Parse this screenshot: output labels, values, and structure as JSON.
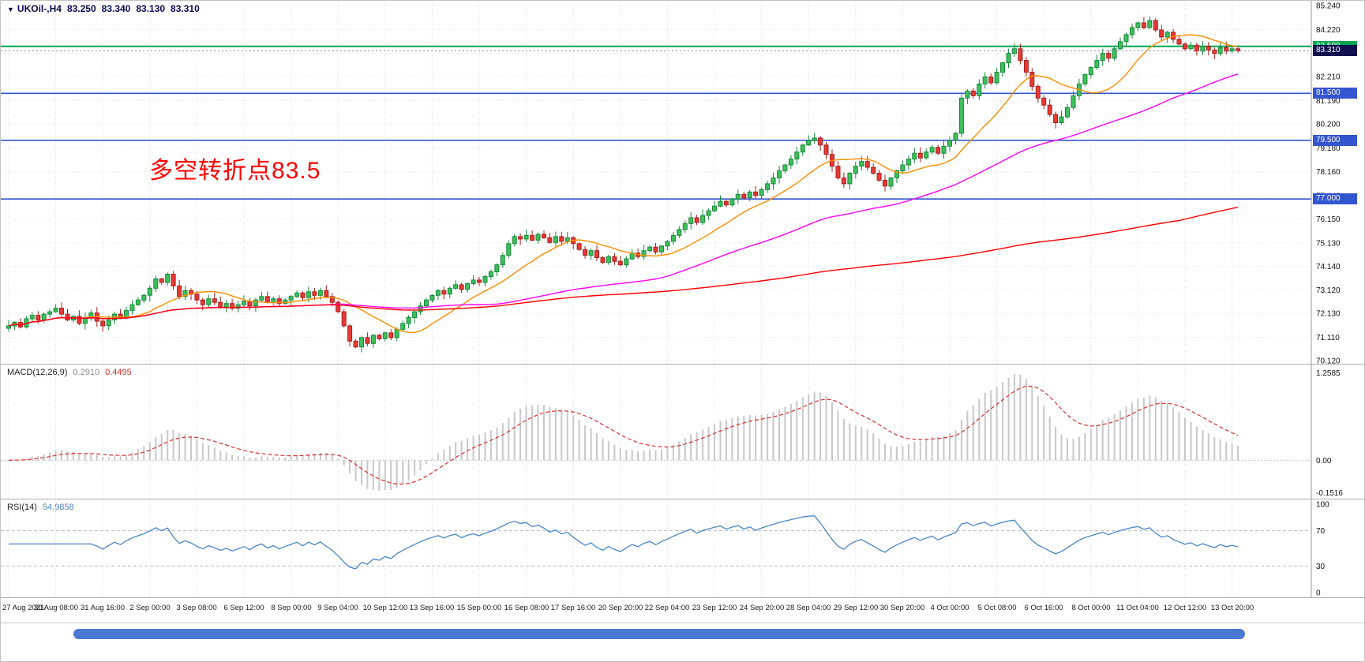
{
  "header": {
    "symbol_marker": "▼",
    "title": "UKOil-,H4",
    "quote": {
      "open": "83.250",
      "high": "83.340",
      "low": "83.130",
      "close": "83.310"
    }
  },
  "annotation": {
    "text": "多空转折点83.5",
    "color": "#FF0000"
  },
  "chart_data": {
    "type": "candlestick",
    "symbol": "UKOil-",
    "timeframe": "H4",
    "price_axis": {
      "max": 85.24,
      "min": 70.12,
      "ticks": [
        85.24,
        84.22,
        83.2,
        82.21,
        81.19,
        80.2,
        79.18,
        78.16,
        77.14,
        76.15,
        75.13,
        74.14,
        73.12,
        72.13,
        71.11,
        70.12
      ]
    },
    "time_axis": [
      "27 Aug 2021",
      "30 Aug 08:00",
      "31 Aug 16:00",
      "2 Sep 00:00",
      "3 Sep 08:00",
      "6 Sep 12:00",
      "8 Sep 00:00",
      "9 Sep 04:00",
      "10 Sep 12:00",
      "13 Sep 16:00",
      "15 Sep 00:00",
      "16 Sep 08:00",
      "17 Sep 16:00",
      "20 Sep 20:00",
      "22 Sep 04:00",
      "23 Sep 12:00",
      "24 Sep 20:00",
      "28 Sep 04:00",
      "29 Sep 12:00",
      "30 Sep 20:00",
      "4 Oct 00:00",
      "5 Oct 08:00",
      "6 Oct 16:00",
      "8 Oct 00:00",
      "11 Oct 04:00",
      "12 Oct 12:00",
      "13 Oct 20:00"
    ],
    "horizontal_lines": [
      {
        "price": 83.5,
        "label": "83.500",
        "color": "#00A651",
        "width": 2
      },
      {
        "price": 81.5,
        "label": "81.500",
        "color": "#3355D0",
        "width": 1.6
      },
      {
        "price": 79.5,
        "label": "79.500",
        "color": "#3355D0",
        "width": 1.6
      },
      {
        "price": 77.0,
        "label": "77.000",
        "color": "#3355D0",
        "width": 1.6
      }
    ],
    "current_price": {
      "price": 83.31,
      "label": "83.310",
      "bg": "#10104F"
    },
    "candles": {
      "first_open": 71.5,
      "up": {
        "fill": "#3FBF5C",
        "border": "#168A3A"
      },
      "down": {
        "fill": "#E63A34",
        "border": "#A81E1E"
      },
      "closes": [
        71.6,
        71.75,
        71.55,
        71.9,
        72.05,
        71.85,
        72.1,
        72.2,
        72.35,
        72.1,
        71.85,
        72.0,
        71.7,
        71.95,
        72.15,
        71.8,
        71.6,
        71.85,
        72.1,
        71.95,
        72.25,
        72.5,
        72.7,
        72.9,
        73.2,
        73.6,
        73.45,
        73.8,
        73.3,
        72.85,
        73.1,
        72.95,
        72.7,
        72.5,
        72.75,
        72.6,
        72.4,
        72.55,
        72.35,
        72.5,
        72.65,
        72.45,
        72.7,
        72.85,
        72.6,
        72.75,
        72.55,
        72.7,
        72.85,
        73.0,
        72.8,
        73.05,
        72.9,
        73.1,
        72.85,
        72.6,
        72.2,
        71.6,
        70.95,
        70.7,
        71.1,
        70.85,
        71.2,
        71.05,
        71.3,
        71.1,
        71.45,
        71.7,
        71.95,
        72.2,
        72.45,
        72.7,
        72.9,
        73.1,
        72.95,
        73.2,
        73.35,
        73.15,
        73.4,
        73.55,
        73.45,
        73.7,
        73.9,
        74.2,
        74.6,
        75.1,
        75.4,
        75.3,
        75.45,
        75.25,
        75.5,
        75.35,
        75.15,
        75.4,
        75.2,
        75.35,
        75.1,
        74.85,
        74.6,
        74.8,
        74.5,
        74.3,
        74.55,
        74.35,
        74.2,
        74.45,
        74.7,
        74.55,
        74.8,
        74.95,
        74.75,
        75.0,
        75.2,
        75.45,
        75.7,
        75.95,
        76.2,
        76.0,
        76.3,
        76.5,
        76.7,
        76.9,
        76.75,
        77.0,
        77.2,
        77.05,
        77.3,
        77.15,
        77.4,
        77.65,
        77.9,
        78.2,
        78.45,
        78.7,
        79.0,
        79.3,
        79.5,
        79.6,
        79.3,
        78.9,
        78.4,
        77.9,
        77.65,
        78.1,
        78.4,
        78.6,
        78.35,
        78.1,
        77.8,
        77.55,
        77.9,
        78.2,
        78.45,
        78.7,
        78.95,
        78.75,
        79.0,
        79.2,
        78.95,
        79.25,
        79.5,
        79.8,
        81.3,
        81.6,
        81.4,
        81.9,
        82.2,
        81.95,
        82.4,
        82.8,
        83.2,
        83.4,
        82.9,
        82.4,
        81.8,
        81.3,
        81.0,
        80.6,
        80.25,
        80.5,
        80.9,
        81.4,
        81.9,
        82.3,
        82.6,
        82.9,
        83.2,
        83.0,
        83.4,
        83.7,
        84.0,
        84.3,
        84.5,
        84.3,
        84.6,
        84.2,
        83.9,
        84.1,
        83.8,
        83.6,
        83.4,
        83.55,
        83.3,
        83.5,
        83.35,
        83.2,
        83.45,
        83.3,
        83.4,
        83.31
      ]
    },
    "moving_averages": [
      {
        "period": 13,
        "color": "#FF8C00"
      },
      {
        "period": 55,
        "color": "#FF00FF"
      },
      {
        "period": 200,
        "color": "#FF0000"
      }
    ],
    "indicators": {
      "macd": {
        "label": "MACD(12,26,9)",
        "value_main": "0.2910",
        "value_signal": "0.4495",
        "fast": 12,
        "slow": 26,
        "signal": 9,
        "axis": {
          "max": "1.2585",
          "zero": "0.00",
          "min": "-0.1516"
        },
        "histogram_color": "#C8C8C8",
        "signal_color": "#D93030"
      },
      "rsi": {
        "label": "RSI(14)",
        "value": "54.9858",
        "period": 14,
        "axis": [
          "100",
          "70",
          "30",
          "0"
        ],
        "levels": [
          70,
          30
        ],
        "color": "#4A86C8"
      }
    }
  },
  "scrollbar": {
    "color": "#4A79D2"
  }
}
